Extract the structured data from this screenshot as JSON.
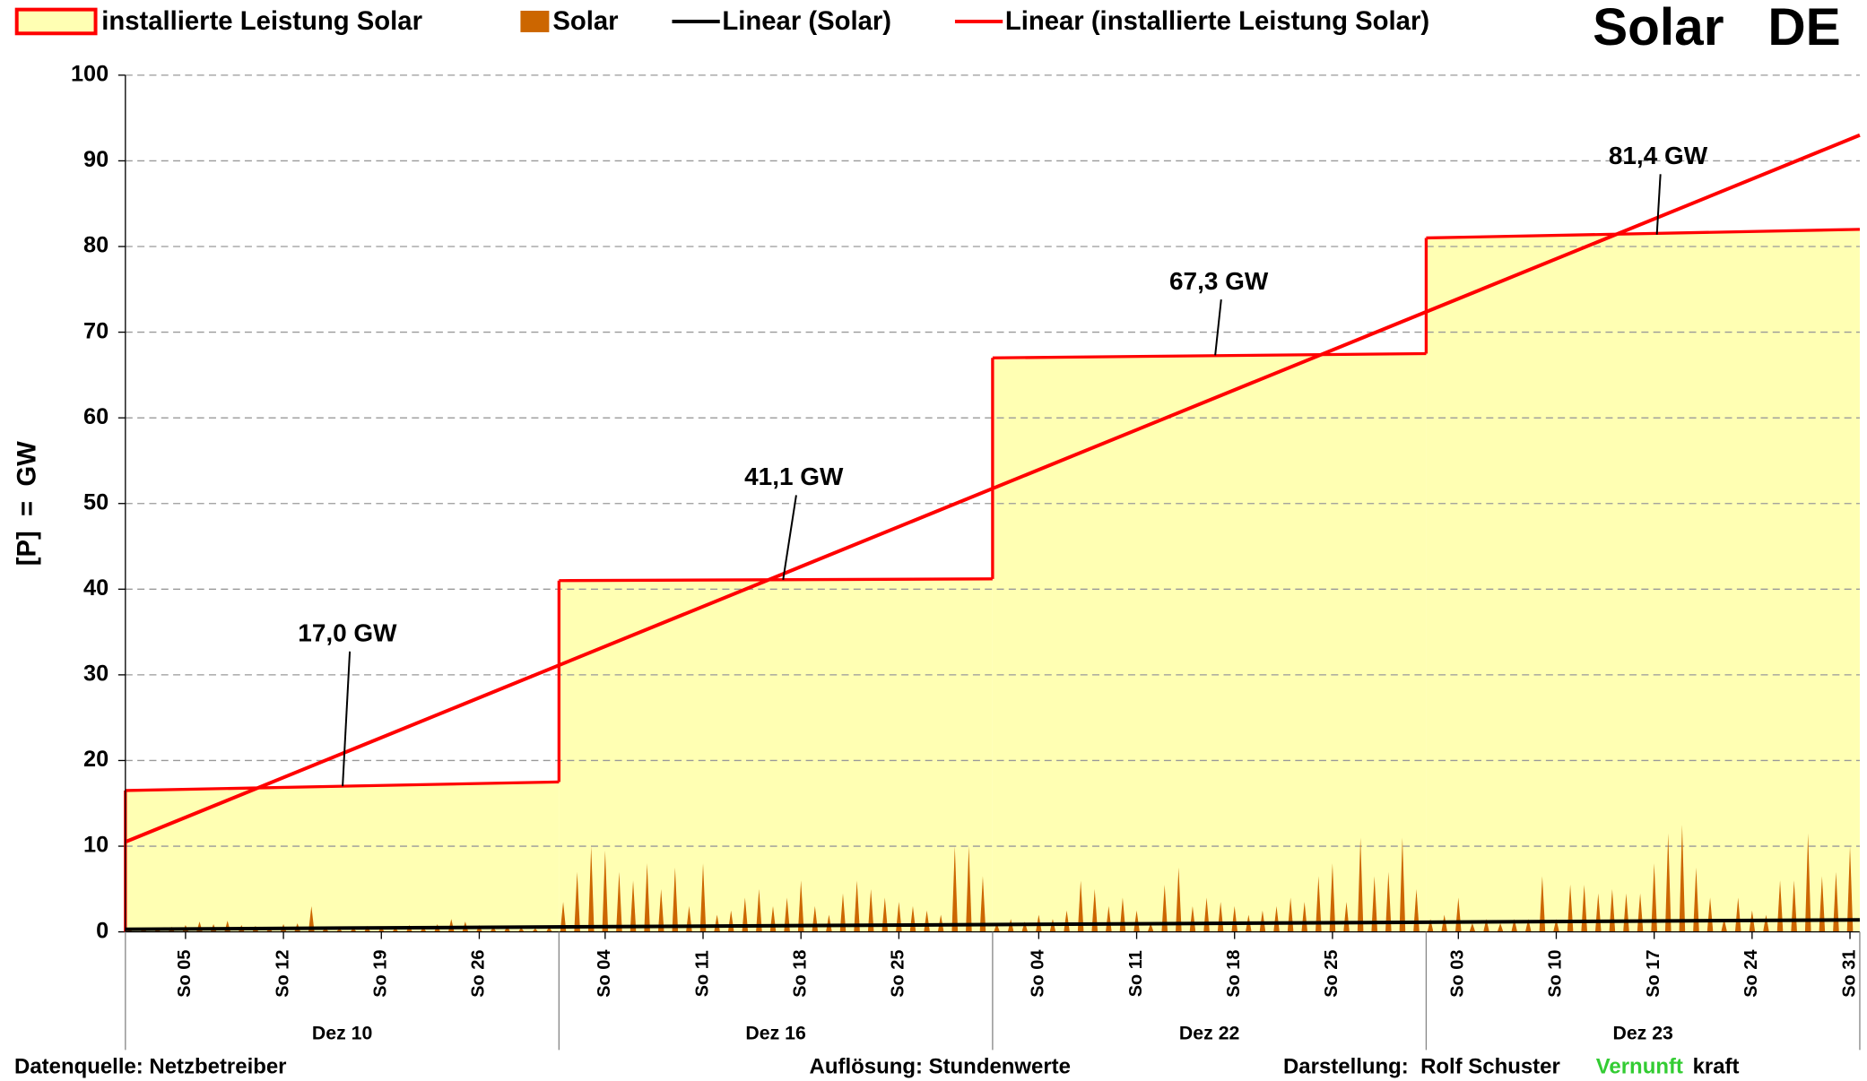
{
  "chart_data": {
    "type": "step-area",
    "title": "Solar   DE",
    "ylabel": "[P]  =  GW",
    "ylim": [
      0,
      100
    ],
    "yticks": [
      0,
      10,
      20,
      30,
      40,
      50,
      60,
      70,
      80,
      90,
      100
    ],
    "grid": true,
    "series": [
      {
        "name": "installierte Leistung Solar",
        "color": "#ff0000",
        "fill": "#ffffb3"
      },
      {
        "name": "Solar",
        "color": "#cc6600"
      },
      {
        "name": "Linear (Solar)",
        "color": "#000000",
        "values": [
          0.3,
          1.4
        ]
      },
      {
        "name": "Linear (installierte Leistung Solar)",
        "color": "#ff0000",
        "values": [
          10.5,
          93
        ]
      }
    ],
    "panels": [
      {
        "label": "Dez 10",
        "xticks": [
          {
            "value": 5,
            "label": "So 05"
          },
          {
            "value": 12,
            "label": "So 12"
          },
          {
            "value": 19,
            "label": "So 19"
          },
          {
            "value": 26,
            "label": "So 26"
          }
        ],
        "installed": [
          16.5,
          17.5
        ],
        "solar": [
          0.3,
          0.5,
          0.4,
          0.6,
          0.8,
          1.2,
          0.9,
          1.3,
          0.8,
          0.7,
          0.5,
          0.9,
          1.0,
          3.0,
          0.6,
          0.4,
          0.5,
          0.7,
          0.6,
          0.5,
          0.8,
          0.6,
          0.9,
          1.5,
          1.2,
          0.8,
          0.6,
          0.7,
          0.5,
          0.4,
          0.6
        ]
      },
      {
        "label": "Dez 16",
        "xticks": [
          {
            "value": 4,
            "label": "So 04"
          },
          {
            "value": 11,
            "label": "So 11"
          },
          {
            "value": 18,
            "label": "So 18"
          },
          {
            "value": 25,
            "label": "So 25"
          }
        ],
        "installed": [
          41,
          41.2
        ],
        "solar": [
          3.5,
          7,
          10,
          9.5,
          7,
          6,
          8,
          5,
          7.5,
          3,
          8,
          2,
          2.5,
          4,
          5,
          3,
          4,
          6,
          3,
          2,
          4.5,
          6,
          5,
          4,
          3.5,
          3,
          2.5,
          2,
          10,
          10,
          6.5
        ]
      },
      {
        "label": "Dez 22",
        "xticks": [
          {
            "value": 4,
            "label": "So 04"
          },
          {
            "value": 11,
            "label": "So 11"
          },
          {
            "value": 18,
            "label": "So 18"
          },
          {
            "value": 25,
            "label": "So 25"
          }
        ],
        "installed": [
          67,
          67.5
        ],
        "solar": [
          1,
          1.5,
          1.2,
          2,
          1.5,
          2.5,
          6,
          5,
          3,
          4,
          2.5,
          1,
          5.5,
          7.5,
          3,
          4,
          3.5,
          3,
          2,
          2.5,
          3,
          4,
          3.5,
          6.5,
          8,
          3.5,
          11,
          6.5,
          7,
          11,
          5
        ]
      },
      {
        "label": "Dez 23",
        "xticks": [
          {
            "value": 3,
            "label": "So 03"
          },
          {
            "value": 10,
            "label": "So 10"
          },
          {
            "value": 17,
            "label": "So 17"
          },
          {
            "value": 24,
            "label": "So 24"
          },
          {
            "value": 31,
            "label": "So 31"
          }
        ],
        "installed": [
          81,
          82
        ],
        "solar": [
          1.5,
          2,
          4,
          1,
          1.5,
          1,
          1.5,
          1.5,
          6.5,
          1.5,
          5.5,
          5.5,
          4.5,
          5,
          4.5,
          4.5,
          8,
          11.5,
          12.5,
          7.5,
          4,
          1.5,
          4,
          2.5,
          2,
          6,
          6,
          11.5,
          6.5,
          7,
          10
        ]
      }
    ],
    "annotations": [
      {
        "label": "17,0 GW",
        "value": 17.0
      },
      {
        "label": "41,1 GW",
        "value": 41.1
      },
      {
        "label": "67,3 GW",
        "value": 67.3
      },
      {
        "label": "81,4 GW",
        "value": 81.4
      }
    ]
  },
  "footer": {
    "source": "Datenquelle: Netzbetreiber",
    "resolution": "Auflösung: Stundenwerte",
    "author": "Darstellung:  Rolf Schuster",
    "brand_green": "Vernunft",
    "brand_rest": "kraft"
  }
}
